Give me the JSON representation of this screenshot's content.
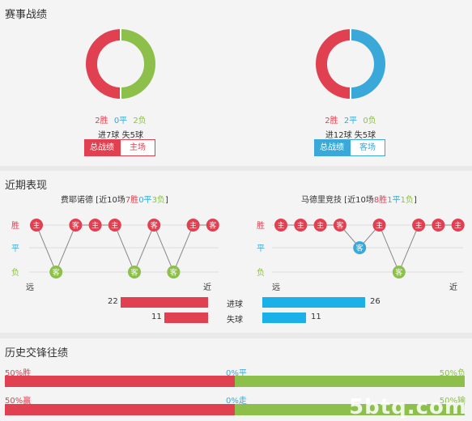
{
  "sections": {
    "record_title": "赛事战绩",
    "recent_title": "近期表现",
    "history_title": "历史交锋往绩"
  },
  "colors": {
    "red": "#e04050",
    "green": "#8cc04a",
    "blue": "#3aa8d8",
    "light_blue": "#1ab0e8"
  },
  "left_record": {
    "win": "2胜",
    "draw": "0平",
    "loss": "2负",
    "goals_line": "进7球  失5球",
    "tab_total": "总战绩",
    "tab_venue": "主场",
    "donut": {
      "win": 2,
      "draw": 0,
      "loss": 2
    }
  },
  "right_record": {
    "win": "2胜",
    "draw": "2平",
    "loss": "0负",
    "goals_line": "进12球  失5球",
    "tab_total": "总战绩",
    "tab_venue": "客场",
    "donut": {
      "win": 2,
      "draw": 2,
      "loss": 0
    }
  },
  "left_recent": {
    "title_prefix": "费耶诺德 [近10场",
    "w": "7胜",
    "d": "0平",
    "l": "3负",
    "title_suffix": "]",
    "axis_labels": [
      "胜",
      "平",
      "负"
    ],
    "far": "远",
    "near": "近",
    "results": [
      "W",
      "L",
      "W",
      "W",
      "W",
      "L",
      "W",
      "L",
      "W",
      "W"
    ],
    "venues": [
      "主",
      "客",
      "客",
      "主",
      "主",
      "客",
      "客",
      "客",
      "主",
      "客"
    ]
  },
  "right_recent": {
    "title_prefix": "马德里竞技 [近10场",
    "w": "8胜",
    "d": "1平",
    "l": "1负",
    "title_suffix": "]",
    "axis_labels": [
      "胜",
      "平",
      "负"
    ],
    "far": "远",
    "near": "近",
    "results": [
      "W",
      "W",
      "W",
      "W",
      "D",
      "W",
      "L",
      "W",
      "W",
      "W"
    ],
    "venues": [
      "主",
      "主",
      "主",
      "客",
      "客",
      "主",
      "客",
      "主",
      "主",
      "主"
    ]
  },
  "goals": {
    "scored_label": "进球",
    "conceded_label": "失球",
    "left_scored": 22,
    "left_conceded": 11,
    "right_scored": 26,
    "right_conceded": 11
  },
  "history": {
    "row1": {
      "left": "50%胜",
      "mid": "0%平",
      "right": "50%负",
      "left_pct": 50
    },
    "row2": {
      "left": "50%赢",
      "mid": "0%走",
      "right": "50%输",
      "left_pct": 50
    }
  },
  "watermark": "5btq.com"
}
